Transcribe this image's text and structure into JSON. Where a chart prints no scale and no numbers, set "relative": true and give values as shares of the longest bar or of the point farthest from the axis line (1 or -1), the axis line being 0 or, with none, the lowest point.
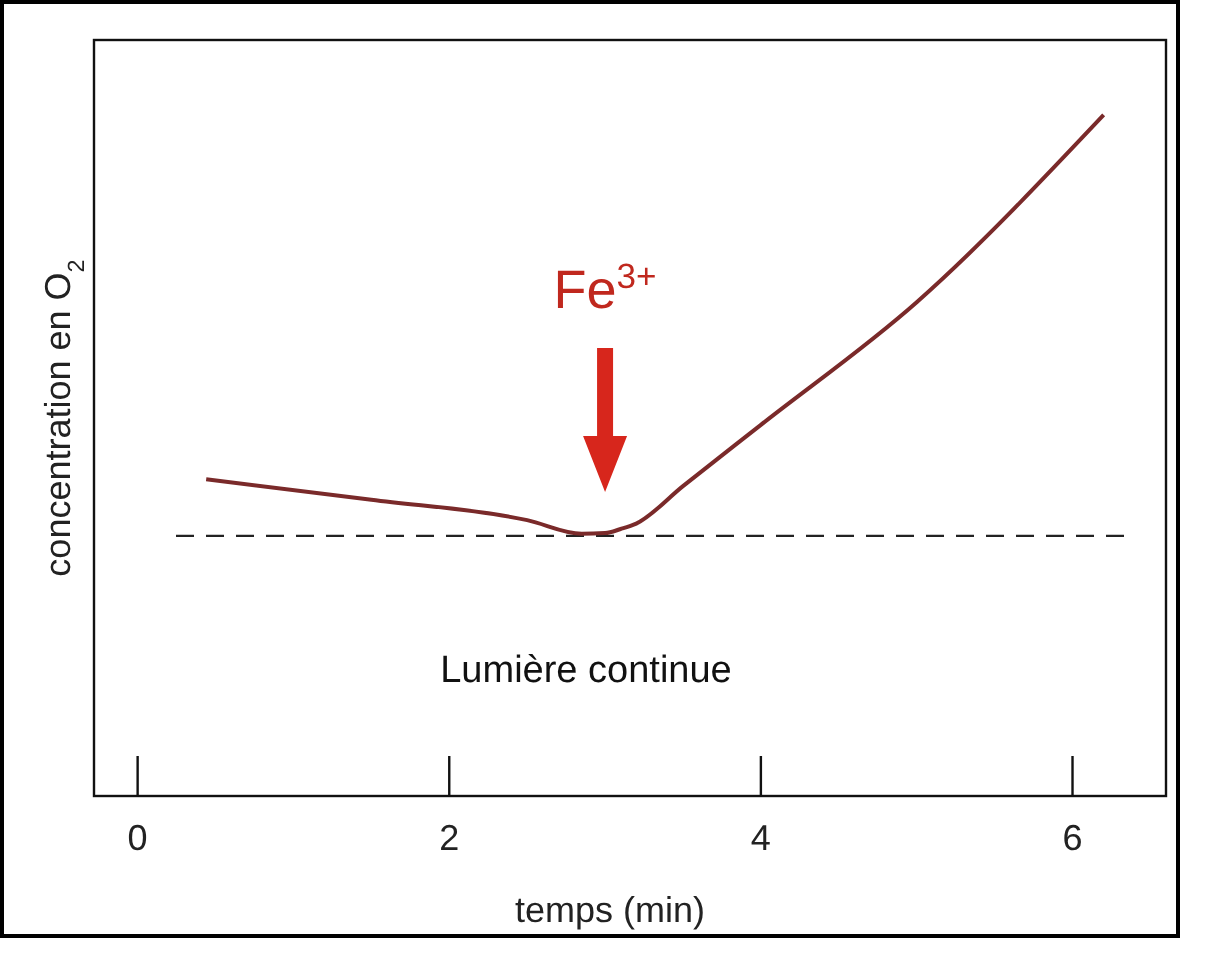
{
  "chart_data": {
    "type": "line",
    "relative": true,
    "xlabel": "temps (min)",
    "ylabel": "concentration en O$_{2}$",
    "xlim": [
      -0.28,
      6.6
    ],
    "xticks": [
      0,
      2,
      4,
      6
    ],
    "series": [
      {
        "color": "#7a2a2a",
        "x": [
          0.44,
          1.5,
          2.5,
          2.85,
          3.0,
          3.1,
          3.2,
          3.5,
          4.0,
          5.0,
          6.2
        ],
        "values": [
          0.465,
          0.435,
          0.405,
          0.385,
          0.386,
          0.392,
          0.4,
          0.455,
          0.545,
          0.725,
          1
        ]
      }
    ],
    "ref_lines": [
      {
        "axis": "y",
        "value": 0.382,
        "line_style": "dashed",
        "color": "#222222"
      }
    ],
    "annotations": [
      "Fe$^{3+}$",
      "Lumière continue"
    ],
    "line_style": "solid",
    "grid": false
  }
}
